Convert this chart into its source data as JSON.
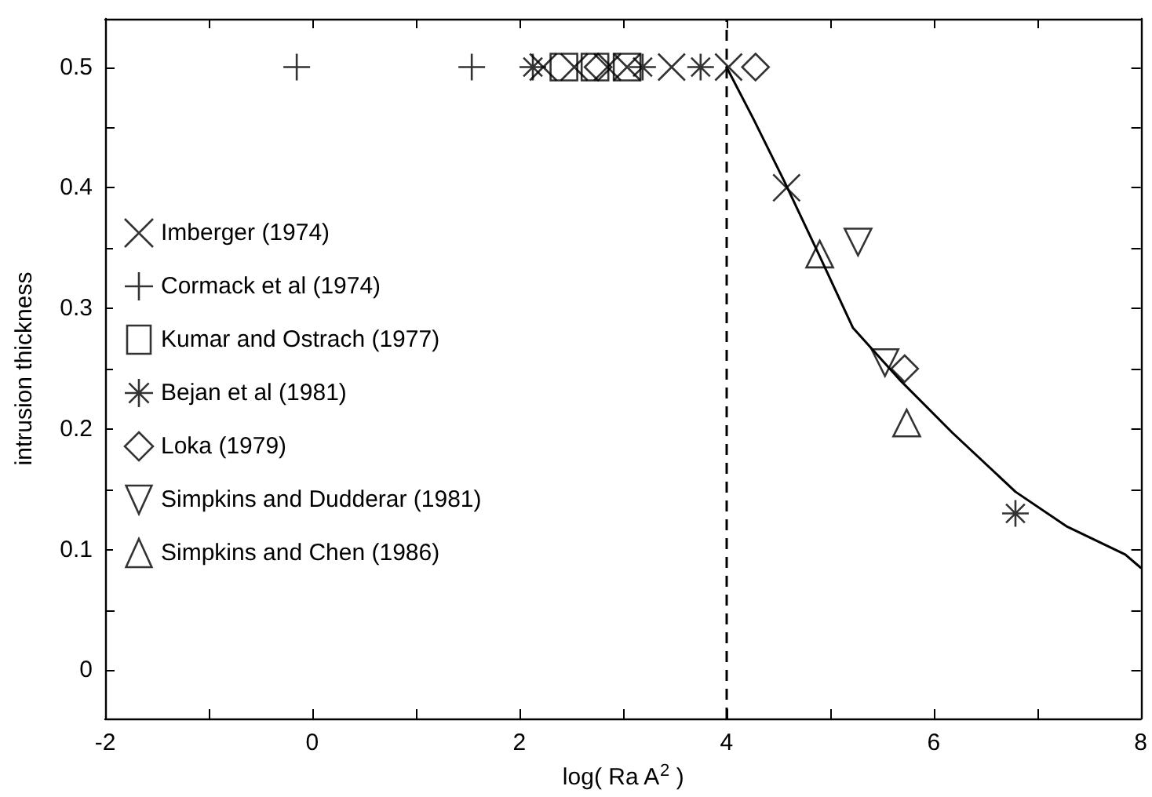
{
  "chart_data": {
    "type": "scatter",
    "xlabel": "log( Ra A$^{2}$ )",
    "ylabel": "intrusion thickness",
    "xlim": [
      -2,
      8
    ],
    "ylim": [
      -0.04,
      0.54
    ],
    "xticks": [
      -2,
      {
        "value": -1,
        "label": null
      },
      0,
      {
        "value": 1,
        "label": null
      },
      2,
      {
        "value": 3,
        "label": null
      },
      4,
      {
        "value": 5,
        "label": null
      },
      6,
      {
        "value": 7,
        "label": null
      },
      8
    ],
    "yticks": [
      0,
      {
        "value": 0.05,
        "label": null
      },
      0.1,
      {
        "value": 0.15,
        "label": null
      },
      0.2,
      {
        "value": 0.25,
        "label": null
      },
      0.3,
      {
        "value": 0.35,
        "label": null
      },
      0.4,
      {
        "value": 0.45,
        "label": null
      },
      0.5
    ],
    "legend": "left",
    "grid": false,
    "ref_lines": [
      {
        "axis": "x",
        "value": 4,
        "line_style": "dashed",
        "color": "#000000"
      }
    ],
    "series": [
      {
        "name": "Imberger (1974)",
        "marker": "x",
        "color": "#000000",
        "x": [
          2.23,
          2.53,
          2.85,
          3.04,
          3.47,
          4.02,
          4.58
        ],
        "values": [
          0.5,
          0.5,
          0.5,
          0.5,
          0.5,
          0.5,
          0.4
        ]
      },
      {
        "name": "Cormack et al (1974)",
        "marker": "plus",
        "color": "#000000",
        "x": [
          -0.15,
          1.54
        ],
        "values": [
          0.5,
          0.5
        ]
      },
      {
        "name": "Kumar and Ostrach (1977)",
        "marker": "square",
        "color": "#000000",
        "x": [
          2.43,
          2.73,
          3.04
        ],
        "values": [
          0.5,
          0.5,
          0.5
        ]
      },
      {
        "name": "Bejan et al (1981)",
        "marker": "cross",
        "color": "#000000",
        "x": [
          2.13,
          3.19,
          3.75,
          6.79
        ],
        "values": [
          0.5,
          0.5,
          0.5,
          0.13
        ]
      },
      {
        "name": "Loka (1979)",
        "marker": "diamond",
        "color": "#000000",
        "x": [
          2.76,
          4.28,
          5.72
        ],
        "values": [
          0.5,
          0.5,
          0.25
        ]
      },
      {
        "name": "Simpkins and Dudderar (1981)",
        "marker": "triangle-down",
        "color": "#000000",
        "x": [
          5.27,
          5.53
        ],
        "values": [
          0.355,
          0.255
        ]
      },
      {
        "name": "Simpkins and Chen (1986)",
        "marker": "triangle",
        "color": "#000000",
        "x": [
          4.9,
          5.74
        ],
        "values": [
          0.345,
          0.205
        ]
      },
      {
        "type": "line",
        "line_style": "solid",
        "marker": "none",
        "color": "#000000",
        "x": [
          4,
          4.26,
          4.56,
          4.89,
          5.22,
          5.67,
          6.18,
          6.79,
          7.29,
          7.85,
          8
        ],
        "values": [
          0.5,
          0.457,
          0.405,
          0.345,
          0.284,
          0.241,
          0.197,
          0.148,
          0.119,
          0.096,
          0.085
        ]
      }
    ]
  }
}
